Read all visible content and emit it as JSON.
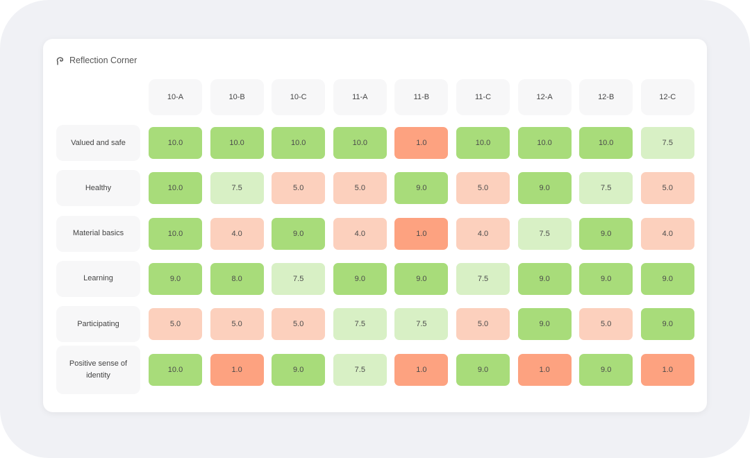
{
  "app": {
    "title": "Reflection Corner",
    "logo_icon": "swirl-logo-icon"
  },
  "columns": [
    "10-A",
    "10-B",
    "10-C",
    "11-A",
    "11-B",
    "11-C",
    "12-A",
    "12-B",
    "12-C"
  ],
  "colors": {
    "high": "#a8dc7a",
    "medium_high": "#d8f0c5",
    "medium_low": "#fcd0bd",
    "low": "#fda280"
  },
  "rows": [
    {
      "label": "Valued and safe",
      "values": [
        "10.0",
        "10.0",
        "10.0",
        "10.0",
        "1.0",
        "10.0",
        "10.0",
        "10.0",
        "7.5"
      ]
    },
    {
      "label": "Healthy",
      "values": [
        "10.0",
        "7.5",
        "5.0",
        "5.0",
        "9.0",
        "5.0",
        "9.0",
        "7.5",
        "5.0"
      ]
    },
    {
      "label": "Material basics",
      "values": [
        "10.0",
        "4.0",
        "9.0",
        "4.0",
        "1.0",
        "4.0",
        "7.5",
        "9.0",
        "4.0"
      ]
    },
    {
      "label": "Learning",
      "values": [
        "9.0",
        "8.0",
        "7.5",
        "9.0",
        "9.0",
        "7.5",
        "9.0",
        "9.0",
        "9.0"
      ]
    },
    {
      "label": "Participating",
      "values": [
        "5.0",
        "5.0",
        "5.0",
        "7.5",
        "7.5",
        "5.0",
        "9.0",
        "5.0",
        "9.0"
      ]
    },
    {
      "label": "Positive sense of identity",
      "values": [
        "10.0",
        "1.0",
        "9.0",
        "7.5",
        "1.0",
        "9.0",
        "1.0",
        "9.0",
        "1.0"
      ]
    }
  ]
}
